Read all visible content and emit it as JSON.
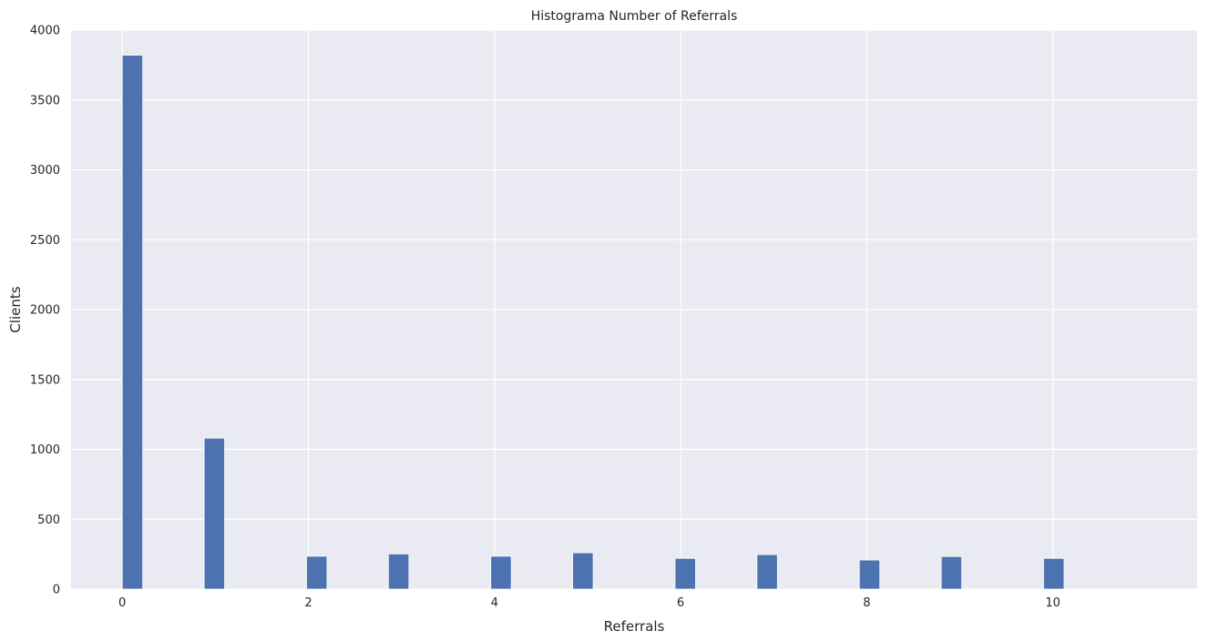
{
  "chart_data": {
    "type": "bar",
    "title": "Histograma Number of Referrals",
    "xlabel": "Referrals",
    "ylabel": "Clients",
    "xlim": [
      -0.55,
      11.55
    ],
    "ylim": [
      0,
      4000
    ],
    "x_ticks": [
      0,
      2,
      4,
      6,
      8,
      10
    ],
    "y_ticks": [
      0,
      500,
      1000,
      1500,
      2000,
      2500,
      3000,
      3500,
      4000
    ],
    "bin_width": 0.22,
    "bars": [
      {
        "x": 0,
        "value": 3820
      },
      {
        "x": 0.88,
        "value": 1080
      },
      {
        "x": 1.98,
        "value": 235
      },
      {
        "x": 2.86,
        "value": 252
      },
      {
        "x": 3.96,
        "value": 235
      },
      {
        "x": 4.84,
        "value": 260
      },
      {
        "x": 5.94,
        "value": 220
      },
      {
        "x": 6.82,
        "value": 247
      },
      {
        "x": 7.92,
        "value": 208
      },
      {
        "x": 8.8,
        "value": 233
      },
      {
        "x": 9.9,
        "value": 220
      }
    ],
    "grid": true,
    "background_color": "#eaeaf2",
    "bar_color": "#4c72b0",
    "grid_color": "#ffffff"
  }
}
